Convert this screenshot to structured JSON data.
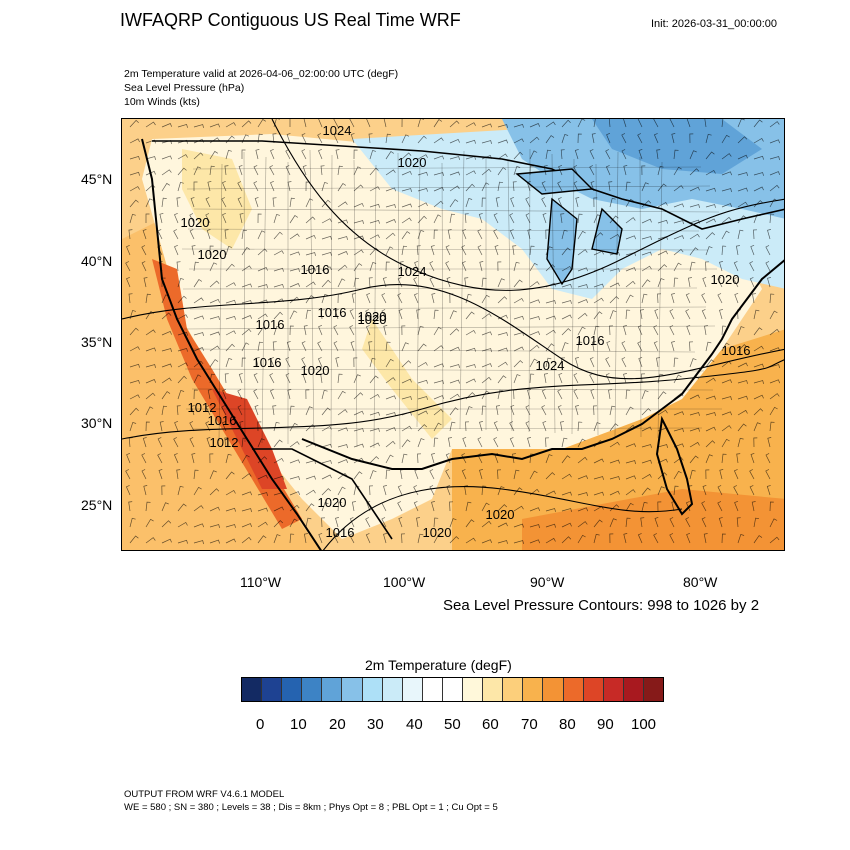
{
  "header": {
    "title": "IWFAQRP Contiguous US Real Time WRF",
    "init": "Init: 2026-03-31_00:00:00"
  },
  "subtitles": [
    "2m Temperature valid at 2026-04-06_02:00:00 UTC   (degF)",
    "Sea Level Pressure   (hPa)",
    "10m Winds   (kts)"
  ],
  "map": {
    "lat_labels": [
      "45°N",
      "40°N",
      "35°N",
      "30°N",
      "25°N"
    ],
    "lon_labels": [
      "110°W",
      "100°W",
      "90°W",
      "80°W"
    ],
    "pressure_labels": [
      "1024",
      "1020",
      "1016",
      "1020",
      "1020",
      "1016",
      "1020",
      "1020",
      "1024",
      "1016",
      "1020",
      "1016",
      "1024",
      "1020",
      "1016",
      "1012",
      "1016",
      "1012",
      "1020",
      "1020",
      "1016",
      "1016",
      "1020"
    ],
    "colors": {
      "ocean_warm": "#f6b24d",
      "land_cold": "#8cc7ec",
      "land_hot": "#e5582b"
    }
  },
  "contour_note": "Sea Level Pressure Contours: 998 to 1026 by 2",
  "colorbar": {
    "title": "2m Temperature  (degF)",
    "colors": [
      "#132a63",
      "#1e4292",
      "#2563b0",
      "#3d83c5",
      "#60a3d8",
      "#87c1e8",
      "#ade0f7",
      "#cbebf8",
      "#e8f6fb",
      "#ffffff",
      "#ffffff",
      "#fff8da",
      "#fde7a8",
      "#fccf7b",
      "#f8b24d",
      "#f39335",
      "#ec6a2a",
      "#dd4526",
      "#c72a26",
      "#a8191f",
      "#861a19"
    ],
    "ticks": [
      "0",
      "10",
      "20",
      "30",
      "40",
      "50",
      "60",
      "70",
      "80",
      "90",
      "100"
    ]
  },
  "footer": {
    "line1": "OUTPUT FROM WRF V4.6.1 MODEL",
    "line2": "WE = 580 ; SN = 380 ; Levels = 38 ; Dis = 8km ; Phys Opt = 8 ; PBL Opt = 1 ; Cu Opt = 5"
  }
}
